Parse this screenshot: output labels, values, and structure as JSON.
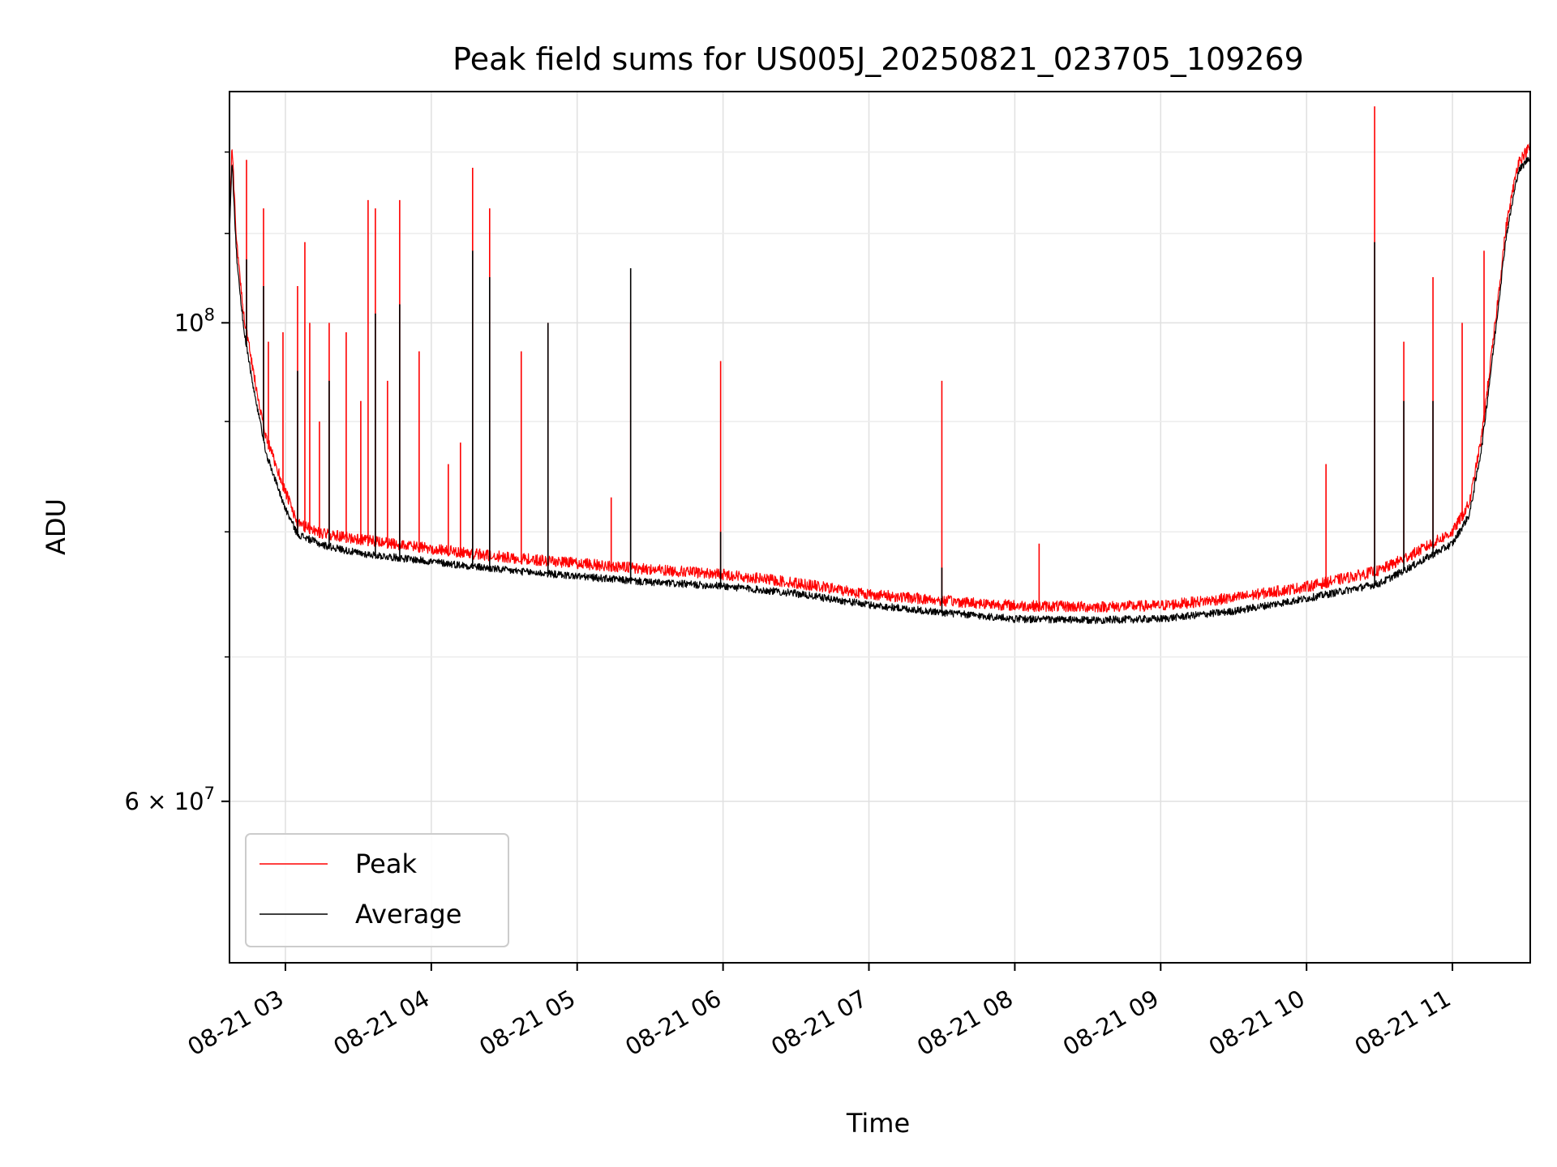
{
  "chart_data": {
    "type": "line",
    "title": "Peak field sums for US005J_20250821_023705_109269",
    "xlabel": "Time",
    "ylabel": "ADU",
    "y_scale": "log",
    "xlim": [
      "08-21 02:37",
      "08-21 11:32"
    ],
    "ylim": [
      50500000,
      128000000
    ],
    "x_ticks": [
      "08-21 03",
      "08-21 04",
      "08-21 05",
      "08-21 06",
      "08-21 07",
      "08-21 08",
      "08-21 09",
      "08-21 10",
      "08-21 11"
    ],
    "y_ticks": [
      {
        "value": 100000000,
        "label": "10^8"
      },
      {
        "value": 60000000,
        "label": "6 × 10^7"
      }
    ],
    "grid": true,
    "legend_position": "lower left",
    "x_unit": "time (08-21 HH:MM)",
    "series": [
      {
        "name": "Peak",
        "color": "#ff0000",
        "baseline": [
          [
            "02:37",
            110000000
          ],
          [
            "02:38",
            120000000
          ],
          [
            "02:40",
            108000000
          ],
          [
            "02:43",
            100000000
          ],
          [
            "02:47",
            94000000
          ],
          [
            "02:52",
            88000000
          ],
          [
            "03:00",
            83000000
          ],
          [
            "03:05",
            80200000
          ],
          [
            "03:15",
            79400000
          ],
          [
            "03:30",
            78900000
          ],
          [
            "04:00",
            78100000
          ],
          [
            "04:30",
            77400000
          ],
          [
            "05:00",
            76900000
          ],
          [
            "05:30",
            76400000
          ],
          [
            "06:00",
            76000000
          ],
          [
            "06:30",
            75300000
          ],
          [
            "07:00",
            74400000
          ],
          [
            "07:30",
            73900000
          ],
          [
            "08:00",
            73500000
          ],
          [
            "08:30",
            73400000
          ],
          [
            "09:00",
            73500000
          ],
          [
            "09:30",
            74100000
          ],
          [
            "10:00",
            75000000
          ],
          [
            "10:30",
            76300000
          ],
          [
            "10:45",
            77800000
          ],
          [
            "11:00",
            79500000
          ],
          [
            "11:07",
            82000000
          ],
          [
            "11:12",
            88000000
          ],
          [
            "11:17",
            98000000
          ],
          [
            "11:22",
            110000000
          ],
          [
            "11:27",
            118000000
          ],
          [
            "11:32",
            120000000
          ]
        ],
        "spikes": [
          [
            "02:44",
            119000000
          ],
          [
            "02:51",
            113000000
          ],
          [
            "02:53",
            98000000
          ],
          [
            "02:59",
            99000000
          ],
          [
            "03:05",
            104000000
          ],
          [
            "03:08",
            109000000
          ],
          [
            "03:10",
            100000000
          ],
          [
            "03:14",
            90000000
          ],
          [
            "03:18",
            100000000
          ],
          [
            "03:25",
            99000000
          ],
          [
            "03:31",
            92000000
          ],
          [
            "03:34",
            114000000
          ],
          [
            "03:37",
            113000000
          ],
          [
            "03:42",
            94000000
          ],
          [
            "03:47",
            114000000
          ],
          [
            "03:55",
            97000000
          ],
          [
            "04:07",
            86000000
          ],
          [
            "04:12",
            88000000
          ],
          [
            "04:17",
            118000000
          ],
          [
            "04:24",
            113000000
          ],
          [
            "04:37",
            97000000
          ],
          [
            "04:48",
            100000000
          ],
          [
            "05:14",
            83000000
          ],
          [
            "05:22",
            100000000
          ],
          [
            "05:59",
            96000000
          ],
          [
            "07:30",
            94000000
          ],
          [
            "08:10",
            79000000
          ],
          [
            "10:08",
            86000000
          ],
          [
            "10:28",
            126000000
          ],
          [
            "10:40",
            98000000
          ],
          [
            "10:52",
            105000000
          ],
          [
            "11:04",
            100000000
          ],
          [
            "11:13",
            108000000
          ]
        ]
      },
      {
        "name": "Average",
        "color": "#000000",
        "baseline": [
          [
            "02:37",
            110000000
          ],
          [
            "02:38",
            119000000
          ],
          [
            "02:40",
            107000000
          ],
          [
            "02:43",
            99000000
          ],
          [
            "02:47",
            93000000
          ],
          [
            "02:52",
            87000000
          ],
          [
            "03:00",
            82000000
          ],
          [
            "03:05",
            79800000
          ],
          [
            "03:15",
            78900000
          ],
          [
            "03:30",
            78200000
          ],
          [
            "04:00",
            77500000
          ],
          [
            "04:30",
            76800000
          ],
          [
            "05:00",
            76300000
          ],
          [
            "05:30",
            75800000
          ],
          [
            "06:00",
            75500000
          ],
          [
            "06:30",
            74900000
          ],
          [
            "07:00",
            74000000
          ],
          [
            "07:30",
            73400000
          ],
          [
            "08:00",
            72900000
          ],
          [
            "08:30",
            72800000
          ],
          [
            "09:00",
            72900000
          ],
          [
            "09:30",
            73500000
          ],
          [
            "10:00",
            74500000
          ],
          [
            "10:30",
            75700000
          ],
          [
            "10:45",
            77300000
          ],
          [
            "11:00",
            79000000
          ],
          [
            "11:07",
            81500000
          ],
          [
            "11:12",
            87500000
          ],
          [
            "11:17",
            97500000
          ],
          [
            "11:22",
            109500000
          ],
          [
            "11:27",
            117500000
          ],
          [
            "11:32",
            119500000
          ]
        ],
        "spikes": [
          [
            "02:44",
            107000000
          ],
          [
            "02:51",
            104000000
          ],
          [
            "03:05",
            95000000
          ],
          [
            "03:18",
            94000000
          ],
          [
            "03:37",
            101000000
          ],
          [
            "03:47",
            102000000
          ],
          [
            "04:17",
            108000000
          ],
          [
            "04:24",
            105000000
          ],
          [
            "04:48",
            100000000
          ],
          [
            "05:22",
            106000000
          ],
          [
            "05:59",
            80000000
          ],
          [
            "07:30",
            77000000
          ],
          [
            "10:28",
            109000000
          ],
          [
            "10:40",
            92000000
          ],
          [
            "10:52",
            92000000
          ]
        ]
      }
    ]
  }
}
